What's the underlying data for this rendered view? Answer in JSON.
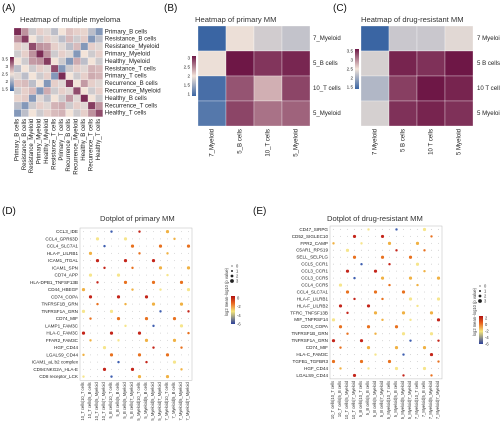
{
  "panels": {
    "A": {
      "letter": "(A)",
      "title": "Heatmap of multiple myeloma",
      "rows": [
        "Primary_B cells",
        "Resistance_B cells",
        "Resistance_Myeloid",
        "Primary_Myeloid",
        "Healthy_Myeloid",
        "Resistance_T cells",
        "Primary_T cells",
        "Recurrence_B cells",
        "Recurrence_Myeloid",
        "Healthy_B cells",
        "Recurrence_T cells",
        "Healthy_T cells"
      ],
      "cols": [
        "Primary_B cells",
        "Resistance_B cells",
        "Resistance_Myeloid",
        "Primary_Myeloid",
        "Healthy_Myeloid",
        "Resistance_T cells",
        "Primary_T cells",
        "Recurrence_B cells",
        "Recurrence_Myeloid",
        "Healthy_B cells",
        "Recurrence_T cells",
        "Healthy_T cells"
      ],
      "legend": [
        "3.5",
        "3",
        "2.5",
        "2",
        "1.5"
      ]
    },
    "B": {
      "letter": "(B)",
      "title": "Heatmap of primary MM",
      "rows": [
        "7_Myeloid",
        "5_B cells",
        "10_T cells",
        "5_Myeloid"
      ],
      "cols": [
        "7_Myeloid",
        "5_B cells",
        "10_T cells",
        "5_Myeloid"
      ],
      "legend": [
        "3",
        "2.5",
        "2",
        "1.5",
        "1"
      ],
      "values": [
        [
          0.3,
          1.6,
          1.4,
          1.3
        ],
        [
          1.6,
          3.0,
          2.8,
          2.9
        ],
        [
          0.4,
          2.6,
          2.0,
          2.7
        ],
        [
          0.5,
          2.7,
          2.4,
          2.5
        ]
      ]
    },
    "C": {
      "letter": "(C)",
      "title": "Heatmap of drug-resistant MM",
      "rows": [
        "7 Myeloid",
        "5 B cells",
        "10 T cells",
        "5 Myeloid"
      ],
      "cols": [
        "7 Myeloid",
        "5 B cells",
        "10 T cells",
        "5 Myeloid"
      ],
      "legend": [
        "3.5",
        "3",
        "2.5",
        "2",
        "1.5"
      ],
      "values": [
        [
          0.3,
          1.5,
          1.5,
          1.7
        ],
        [
          1.6,
          3.3,
          3.2,
          3.4
        ],
        [
          1.3,
          3.1,
          3.4,
          3.3
        ],
        [
          1.6,
          3.2,
          3.3,
          3.2
        ]
      ]
    },
    "D": {
      "letter": "(D)",
      "title": "Dotplot of primary MM",
      "rows": [
        "CCL3_IDE",
        "CCL4_GPR63D",
        "CCL4_SLC7A1",
        "HLA-F_LILRB1",
        "ICAM1_ITGAL",
        "ICAM1_SPN",
        "CD74_APP",
        "HLA-DPB1_TNFSF13B",
        "CD44_HBEGF",
        "CD74_COPA",
        "TNFRSF1B_GRN",
        "TNFRSF1A_GRN",
        "CD74_MIF",
        "LAMP1_FAM3C",
        "HLA-C_FAM3C",
        "FFAR2_FAM3C",
        "HGF_CD44",
        "LGALS9_CD44",
        "ICAM1_aL b2 complex",
        "CD94:NKG2A_HLA-E",
        "CD8 receptor_LCK"
      ],
      "cols": [
        "10_T cells|10_T cells",
        "10_T cells|5_B cells",
        "10_T cells|5_Myeloid",
        "10_T cells|7_Myeloid",
        "5_B cells|10_T cells",
        "5_B cells|5_B cells",
        "5_B cells|5_Myeloid",
        "5_B cells|7_Myeloid",
        "5_Myeloid|10_T cells",
        "5_Myeloid|5_B cells",
        "5_Myeloid|5_Myeloid",
        "5_Myeloid|7_Myeloid",
        "7_Myeloid|10_T cells",
        "7_Myeloid|5_B cells",
        "7_Myeloid|5_Myeloid",
        "7_Myeloid|7_Myeloid"
      ],
      "size_title": "-log10 (p value)",
      "size_labels": [
        "0",
        "1",
        "2",
        "3"
      ],
      "color_title": "log2 mean",
      "color_labels": [
        "0",
        "-2",
        "-4",
        "-6"
      ]
    },
    "E": {
      "letter": "(E)",
      "title": "Dotplot of drug-resistant MM",
      "rows": [
        "CD47_SIRPG",
        "CD52_SIGLEC10",
        "FPR2_CAMP",
        "C5AR1_RPS19",
        "SELL_SELPLG",
        "CCL5_CCR1",
        "CCL3_CCR1",
        "CCL3_CCR5",
        "CCL4_CCR5",
        "CCL4_SLC7A1",
        "HLA-F_LILRB1",
        "HLA-F_LILRB2",
        "TFRC_TNFSF13B",
        "MIF_TNFRSF14",
        "CD74_COPA",
        "TNFRSF1B_GRN",
        "TNFRSF1A_GRN",
        "CD74_MIF",
        "HLA-C_FAM3C",
        "TGFB1_TGFBR3",
        "HGF_CD44",
        "LGALS9_CD44"
      ],
      "cols": [
        "10_T cells|10_T cells",
        "10_T cells|5_B cells",
        "10_T cells|5_Myeloid",
        "10_T cells|7_Myeloid",
        "5_B cells|10_T cells",
        "5_B cells|5_B cells",
        "5_B cells|5_Myeloid",
        "5_B cells|7_Myeloid",
        "5_Myeloid|10_T cells",
        "5_Myeloid|5_B cells",
        "5_Myeloid|5_Myeloid",
        "5_Myeloid|7_Myeloid",
        "7_Myeloid|10_T cells",
        "7_Myeloid|5_B cells",
        "7_Myeloid|5_Myeloid",
        "7_Myeloid|7_Myeloid"
      ],
      "size_title": "-log10 (p value)",
      "size_labels": [
        "0",
        "1",
        "2",
        "3"
      ],
      "color_title": "log2 mean",
      "color_labels": [
        "2",
        "0",
        "-2",
        "-4",
        "-6"
      ]
    }
  },
  "colors": {
    "low": "#3a65a3",
    "mid": "#f3e4d9",
    "high": "#6e1746"
  }
}
